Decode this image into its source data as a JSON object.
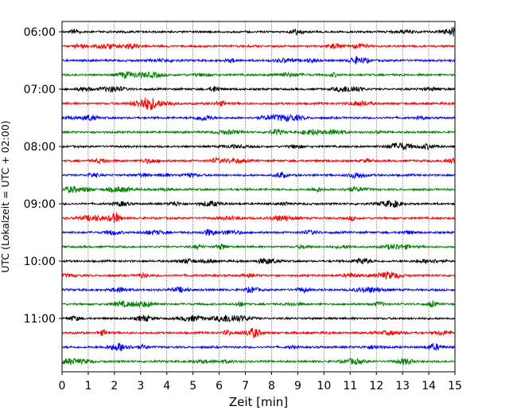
{
  "chart_data": {
    "type": "line",
    "title": "",
    "xlabel": "Zeit  [min]",
    "ylabel": "UTC (Lokalzeit = UTC + 02:00)",
    "xlim": [
      0,
      15
    ],
    "xticks": [
      0,
      1,
      2,
      3,
      4,
      5,
      6,
      7,
      8,
      9,
      10,
      11,
      12,
      13,
      14,
      15
    ],
    "grid": "vertical dotted",
    "yticks": [
      "06:00",
      "07:00",
      "08:00",
      "09:00",
      "10:00",
      "11:00"
    ],
    "trace_start_times": [
      "06:00",
      "06:15",
      "06:30",
      "06:45",
      "07:00",
      "07:15",
      "07:30",
      "07:45",
      "08:00",
      "08:15",
      "08:30",
      "08:45",
      "09:00",
      "09:15",
      "09:30",
      "09:45",
      "10:00",
      "10:15",
      "10:30",
      "10:45",
      "11:00",
      "11:15",
      "11:30",
      "11:45"
    ],
    "trace_color_cycle": [
      "#000000",
      "#ff0000",
      "#0000ff",
      "#008000"
    ],
    "trace_duration_min": 15
  }
}
